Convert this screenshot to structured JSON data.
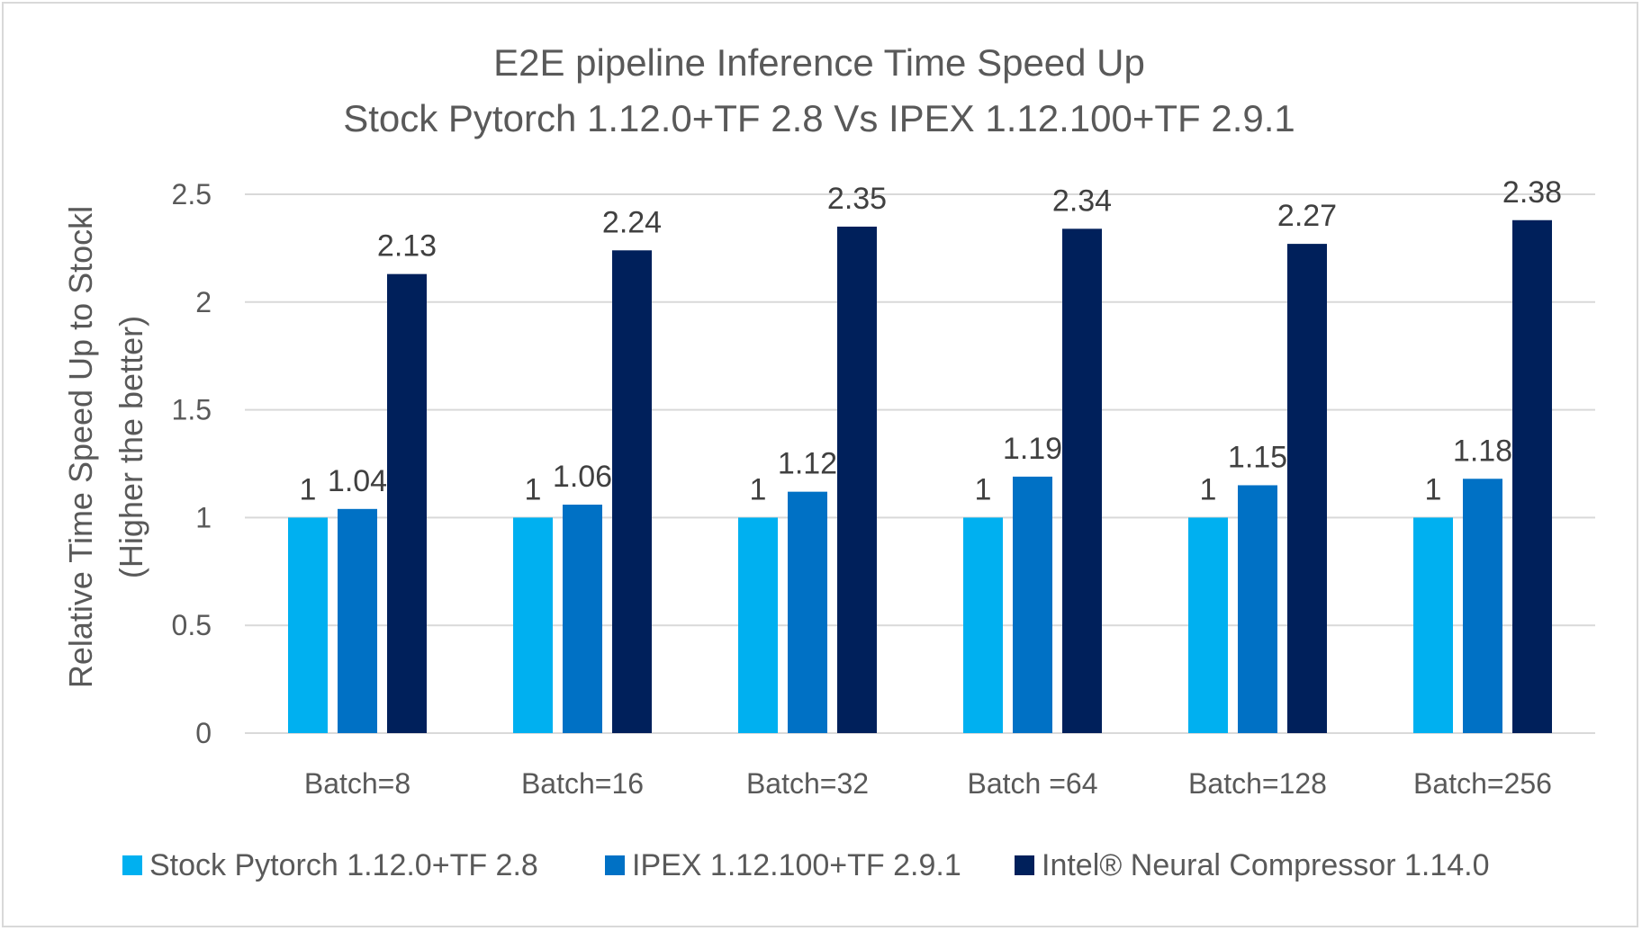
{
  "chart_data": {
    "type": "bar",
    "title": [
      "E2E pipeline Inference Time Speed Up",
      "Stock Pytorch 1.12.0+TF 2.8 Vs IPEX 1.12.100+TF 2.9.1"
    ],
    "ylabel": [
      "Relative Time Speed Up to Stockl",
      "(Higher the better)"
    ],
    "xlabel": "",
    "ylim": [
      0,
      2.5
    ],
    "yticks": [
      "0",
      "0.5",
      "1",
      "1.5",
      "2",
      "2.5"
    ],
    "grid": true,
    "legend_position": "bottom",
    "categories": [
      "Batch=8",
      "Batch=16",
      "Batch=32",
      "Batch =64",
      "Batch=128",
      "Batch=256"
    ],
    "series": [
      {
        "name": "Stock Pytorch 1.12.0+TF 2.8",
        "color": "#00b0f0",
        "values": [
          1,
          1,
          1,
          1,
          1,
          1
        ],
        "labels": [
          "1",
          "1",
          "1",
          "1",
          "1",
          "1"
        ]
      },
      {
        "name": "IPEX 1.12.100+TF 2.9.1",
        "color": "#0071c5",
        "values": [
          1.04,
          1.06,
          1.12,
          1.19,
          1.15,
          1.18
        ],
        "labels": [
          "1.04",
          "1.06",
          "1.12",
          "1.19",
          "1.15",
          "1.18"
        ]
      },
      {
        "name": "Intel® Neural Compressor 1.14.0",
        "color": "#00205b",
        "values": [
          2.13,
          2.24,
          2.35,
          2.34,
          2.27,
          2.38
        ],
        "labels": [
          "2.13",
          "2.24",
          "2.35",
          "2.34",
          "2.27",
          "2.38"
        ]
      }
    ]
  }
}
